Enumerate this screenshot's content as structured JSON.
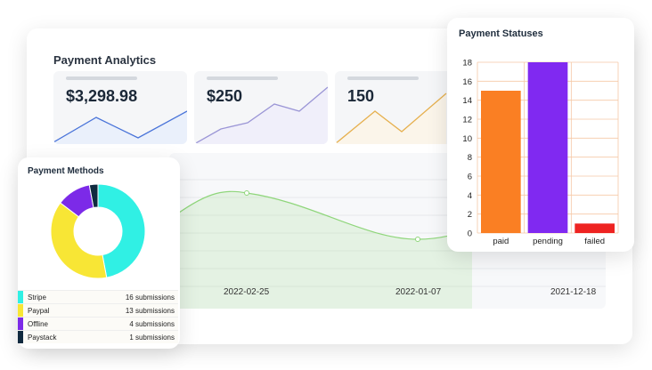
{
  "main": {
    "title": "Payment Analytics",
    "kpis": [
      {
        "value": "$3,298.98",
        "color": "#4a74d9",
        "fill": "#eaf0fb"
      },
      {
        "value": "$250",
        "color": "#9b96d6",
        "fill": "#f0effa"
      },
      {
        "value": "150",
        "color": "#e6b04f",
        "fill": "#fbf5ea"
      }
    ],
    "timeline": {
      "dates": [
        "2022-02-25",
        "2022-01-07",
        "2021-12-18"
      ],
      "line_color": "#8fd67b"
    }
  },
  "methods": {
    "title": "Payment Methods",
    "items": [
      {
        "name": "Stripe",
        "count_label": "16 submissions",
        "value": 16,
        "color": "#30f0e4"
      },
      {
        "name": "Paypal",
        "count_label": "13 submissions",
        "value": 13,
        "color": "#f8e635"
      },
      {
        "name": "Offline",
        "count_label": "4 submissions",
        "value": 4,
        "color": "#7c2ae8"
      },
      {
        "name": "Paystack",
        "count_label": "1 submissions",
        "value": 1,
        "color": "#102a3f"
      }
    ]
  },
  "statuses": {
    "title": "Payment Statuses",
    "chart_data": {
      "type": "bar",
      "categories": [
        "paid",
        "pending",
        "failed"
      ],
      "values": [
        15,
        18,
        1
      ],
      "colors": [
        "#fa7f23",
        "#8029f1",
        "#ee2321"
      ],
      "ylim": [
        0,
        18
      ],
      "yticks": [
        "0",
        "2",
        "4",
        "6",
        "8",
        "10",
        "12",
        "14",
        "16",
        "18"
      ],
      "grid": true,
      "grid_color": "#f5c8a6"
    }
  }
}
